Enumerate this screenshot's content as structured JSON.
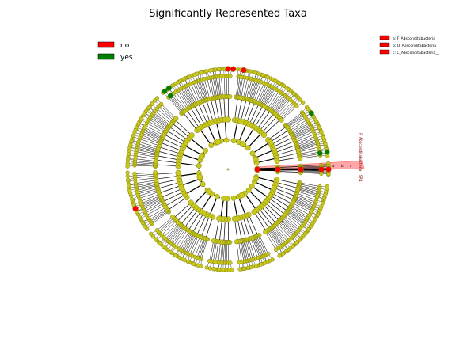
{
  "title": "Significantly Represented Taxa",
  "legend_left": [
    {
      "label": "no",
      "color": "#ff0000"
    },
    {
      "label": "yes",
      "color": "#008000"
    }
  ],
  "legend_right": [
    {
      "label": "a: F_Absconditabacteria__",
      "color": "#ff0000"
    },
    {
      "label": "b: O_Absconditabacteria__",
      "color": "#ff0000"
    },
    {
      "label": "c: C_Absconditabacteria__",
      "color": "#ff0000"
    }
  ],
  "clade_label": "P_Absconditabacteria__SR1_",
  "clade_letters": [
    "a",
    "b",
    "c"
  ],
  "colors": {
    "node": "#c8c81e",
    "node_stroke": "#6e6e00",
    "significant_no": "#ff0000",
    "significant_yes": "#008000",
    "highlight": "#ff6b6b",
    "edge": "#000000"
  }
}
